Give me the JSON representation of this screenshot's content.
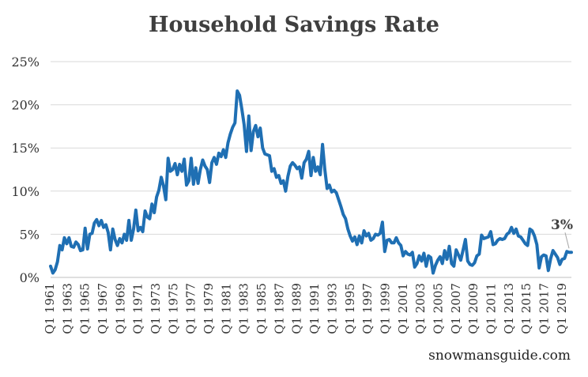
{
  "chart_data": {
    "type": "line",
    "title": "Household Savings Rate",
    "source_note": "snowmansguide.com",
    "xlabel": "",
    "ylabel": "",
    "ylim": [
      0,
      25
    ],
    "y_ticks": [
      "0%",
      "5%",
      "10%",
      "15%",
      "20%",
      "25%"
    ],
    "x_start_year": 1961,
    "x_end_year": 2020,
    "x_tick_labels": [
      "Q1 1961",
      "Q1 1963",
      "Q1 1965",
      "Q1 1967",
      "Q1 1969",
      "Q1 1971",
      "Q1 1973",
      "Q1 1975",
      "Q1 1977",
      "Q1 1979",
      "Q1 1981",
      "Q1 1983",
      "Q1 1985",
      "Q1 1987",
      "Q1 1989",
      "Q1 1991",
      "Q1 1993",
      "Q1 1995",
      "Q1 1997",
      "Q1 1999",
      "Q1 2001",
      "Q1 2003",
      "Q1 2005",
      "Q1 2007",
      "Q1 2009",
      "Q1 2011",
      "Q1 2013",
      "Q1 2015",
      "Q1 2017",
      "Q1 2019"
    ],
    "grid": "horizontal",
    "line_color": "#1f6fb3",
    "annotation": {
      "text": "3%",
      "value": 3
    },
    "series": [
      {
        "name": "",
        "points": [
          [
            1961.0,
            1.3
          ],
          [
            1961.25,
            0.5
          ],
          [
            1961.5,
            0.9
          ],
          [
            1961.75,
            1.8
          ],
          [
            1962.0,
            3.7
          ],
          [
            1962.25,
            3.2
          ],
          [
            1962.5,
            4.6
          ],
          [
            1962.75,
            3.9
          ],
          [
            1963.0,
            4.6
          ],
          [
            1963.25,
            3.6
          ],
          [
            1963.5,
            3.5
          ],
          [
            1963.75,
            4.1
          ],
          [
            1964.0,
            3.8
          ],
          [
            1964.25,
            3.1
          ],
          [
            1964.5,
            3.2
          ],
          [
            1964.75,
            5.7
          ],
          [
            1965.0,
            3.3
          ],
          [
            1965.25,
            5.0
          ],
          [
            1965.5,
            5.1
          ],
          [
            1965.75,
            6.3
          ],
          [
            1966.0,
            6.7
          ],
          [
            1966.25,
            6.0
          ],
          [
            1966.5,
            6.6
          ],
          [
            1966.75,
            5.8
          ],
          [
            1967.0,
            6.1
          ],
          [
            1967.25,
            5.2
          ],
          [
            1967.5,
            3.2
          ],
          [
            1967.75,
            5.6
          ],
          [
            1968.0,
            4.4
          ],
          [
            1968.25,
            3.7
          ],
          [
            1968.5,
            4.5
          ],
          [
            1968.75,
            4.0
          ],
          [
            1969.0,
            5.0
          ],
          [
            1969.25,
            4.3
          ],
          [
            1969.5,
            6.6
          ],
          [
            1969.75,
            4.3
          ],
          [
            1970.0,
            5.6
          ],
          [
            1970.25,
            7.8
          ],
          [
            1970.5,
            5.4
          ],
          [
            1970.75,
            5.8
          ],
          [
            1971.0,
            5.3
          ],
          [
            1971.25,
            7.7
          ],
          [
            1971.5,
            7.0
          ],
          [
            1971.75,
            6.8
          ],
          [
            1972.0,
            8.5
          ],
          [
            1972.25,
            7.5
          ],
          [
            1972.5,
            9.3
          ],
          [
            1972.75,
            10.1
          ],
          [
            1973.0,
            11.6
          ],
          [
            1973.25,
            10.6
          ],
          [
            1973.5,
            9.0
          ],
          [
            1973.75,
            13.8
          ],
          [
            1974.0,
            12.3
          ],
          [
            1974.25,
            12.5
          ],
          [
            1974.5,
            13.2
          ],
          [
            1974.75,
            11.9
          ],
          [
            1975.0,
            13.1
          ],
          [
            1975.25,
            12.3
          ],
          [
            1975.5,
            13.7
          ],
          [
            1975.75,
            10.7
          ],
          [
            1976.0,
            11.2
          ],
          [
            1976.25,
            13.8
          ],
          [
            1976.5,
            10.8
          ],
          [
            1976.75,
            12.7
          ],
          [
            1977.0,
            10.9
          ],
          [
            1977.25,
            12.5
          ],
          [
            1977.5,
            13.6
          ],
          [
            1977.75,
            12.9
          ],
          [
            1978.0,
            12.5
          ],
          [
            1978.25,
            11.0
          ],
          [
            1978.5,
            13.3
          ],
          [
            1978.75,
            13.9
          ],
          [
            1979.0,
            13.1
          ],
          [
            1979.25,
            14.4
          ],
          [
            1979.5,
            14.0
          ],
          [
            1979.75,
            14.8
          ],
          [
            1980.0,
            13.9
          ],
          [
            1980.25,
            15.6
          ],
          [
            1980.5,
            16.6
          ],
          [
            1980.75,
            17.4
          ],
          [
            1981.0,
            17.9
          ],
          [
            1981.25,
            21.6
          ],
          [
            1981.5,
            21.1
          ],
          [
            1981.75,
            19.5
          ],
          [
            1982.0,
            17.7
          ],
          [
            1982.25,
            14.6
          ],
          [
            1982.5,
            18.7
          ],
          [
            1982.75,
            14.7
          ],
          [
            1983.0,
            16.9
          ],
          [
            1983.25,
            17.6
          ],
          [
            1983.5,
            16.3
          ],
          [
            1983.75,
            17.3
          ],
          [
            1984.0,
            15.0
          ],
          [
            1984.25,
            14.3
          ],
          [
            1984.5,
            14.2
          ],
          [
            1984.75,
            14.1
          ],
          [
            1985.0,
            12.3
          ],
          [
            1985.25,
            12.6
          ],
          [
            1985.5,
            11.6
          ],
          [
            1985.75,
            11.8
          ],
          [
            1986.0,
            10.9
          ],
          [
            1986.25,
            11.2
          ],
          [
            1986.5,
            10.0
          ],
          [
            1986.75,
            11.7
          ],
          [
            1987.0,
            12.9
          ],
          [
            1987.25,
            13.3
          ],
          [
            1987.5,
            13.0
          ],
          [
            1987.75,
            12.6
          ],
          [
            1988.0,
            12.8
          ],
          [
            1988.25,
            11.5
          ],
          [
            1988.5,
            13.3
          ],
          [
            1988.75,
            13.7
          ],
          [
            1989.0,
            14.6
          ],
          [
            1989.25,
            11.8
          ],
          [
            1989.5,
            13.9
          ],
          [
            1989.75,
            12.3
          ],
          [
            1990.0,
            12.8
          ],
          [
            1990.25,
            11.9
          ],
          [
            1990.5,
            15.4
          ],
          [
            1990.75,
            12.5
          ],
          [
            1991.0,
            10.3
          ],
          [
            1991.25,
            10.7
          ],
          [
            1991.5,
            9.9
          ],
          [
            1991.75,
            10.1
          ],
          [
            1992.0,
            9.8
          ],
          [
            1992.25,
            9.0
          ],
          [
            1992.5,
            8.2
          ],
          [
            1992.75,
            7.3
          ],
          [
            1993.0,
            6.8
          ],
          [
            1993.25,
            5.6
          ],
          [
            1993.5,
            4.8
          ],
          [
            1993.75,
            4.2
          ],
          [
            1994.0,
            4.7
          ],
          [
            1994.25,
            3.8
          ],
          [
            1994.5,
            4.8
          ],
          [
            1994.75,
            4.0
          ],
          [
            1995.0,
            5.4
          ],
          [
            1995.25,
            4.8
          ],
          [
            1995.5,
            5.1
          ],
          [
            1995.75,
            4.3
          ],
          [
            1996.0,
            4.5
          ],
          [
            1996.25,
            5.0
          ],
          [
            1996.5,
            4.9
          ],
          [
            1996.75,
            5.1
          ],
          [
            1997.0,
            6.4
          ],
          [
            1997.25,
            3.0
          ],
          [
            1997.5,
            4.3
          ],
          [
            1997.75,
            4.4
          ],
          [
            1998.0,
            4.0
          ],
          [
            1998.25,
            4.0
          ],
          [
            1998.5,
            4.6
          ],
          [
            1998.75,
            4.0
          ],
          [
            1999.0,
            3.7
          ],
          [
            1999.25,
            2.5
          ],
          [
            1999.5,
            3.0
          ],
          [
            1999.75,
            2.7
          ],
          [
            2000.0,
            2.6
          ],
          [
            2000.25,
            2.9
          ],
          [
            2000.5,
            1.2
          ],
          [
            2000.75,
            1.6
          ],
          [
            2001.0,
            2.5
          ],
          [
            2001.25,
            1.9
          ],
          [
            2001.5,
            2.8
          ],
          [
            2001.75,
            1.3
          ],
          [
            2002.0,
            2.5
          ],
          [
            2002.25,
            2.3
          ],
          [
            2002.5,
            0.5
          ],
          [
            2002.75,
            1.4
          ],
          [
            2003.0,
            2.0
          ],
          [
            2003.25,
            2.4
          ],
          [
            2003.5,
            1.6
          ],
          [
            2003.75,
            3.1
          ],
          [
            2004.0,
            2.1
          ],
          [
            2004.25,
            3.6
          ],
          [
            2004.5,
            1.6
          ],
          [
            2004.75,
            1.3
          ],
          [
            2005.0,
            3.2
          ],
          [
            2005.25,
            2.6
          ],
          [
            2005.5,
            2.0
          ],
          [
            2005.75,
            3.2
          ],
          [
            2006.0,
            4.4
          ],
          [
            2006.25,
            1.9
          ],
          [
            2006.5,
            1.5
          ],
          [
            2006.75,
            1.4
          ],
          [
            2007.0,
            1.7
          ],
          [
            2007.25,
            2.5
          ],
          [
            2007.5,
            2.7
          ],
          [
            2007.75,
            4.9
          ],
          [
            2008.0,
            4.5
          ],
          [
            2008.25,
            4.6
          ],
          [
            2008.5,
            4.7
          ],
          [
            2008.75,
            5.3
          ],
          [
            2009.0,
            3.8
          ],
          [
            2009.25,
            3.9
          ],
          [
            2009.5,
            4.3
          ],
          [
            2009.75,
            4.5
          ],
          [
            2010.0,
            4.4
          ],
          [
            2010.25,
            4.5
          ],
          [
            2010.5,
            5.0
          ],
          [
            2010.75,
            5.2
          ],
          [
            2011.0,
            5.8
          ],
          [
            2011.25,
            5.1
          ],
          [
            2011.5,
            5.6
          ],
          [
            2011.75,
            4.8
          ],
          [
            2012.0,
            4.7
          ],
          [
            2012.25,
            4.3
          ],
          [
            2012.5,
            3.9
          ],
          [
            2012.75,
            3.7
          ],
          [
            2013.0,
            5.6
          ],
          [
            2013.25,
            5.4
          ],
          [
            2013.5,
            4.8
          ],
          [
            2013.75,
            3.8
          ],
          [
            2014.0,
            1.1
          ],
          [
            2014.25,
            2.4
          ],
          [
            2014.5,
            2.6
          ],
          [
            2014.75,
            2.5
          ],
          [
            2015.0,
            0.8
          ],
          [
            2015.25,
            2.2
          ],
          [
            2015.5,
            3.1
          ],
          [
            2015.75,
            2.7
          ],
          [
            2016.0,
            2.3
          ],
          [
            2016.25,
            1.5
          ],
          [
            2016.5,
            2.1
          ],
          [
            2016.75,
            2.2
          ],
          [
            2017.0,
            3.0
          ],
          [
            2017.25,
            2.9
          ],
          [
            2017.5,
            2.9
          ]
        ]
      }
    ]
  }
}
